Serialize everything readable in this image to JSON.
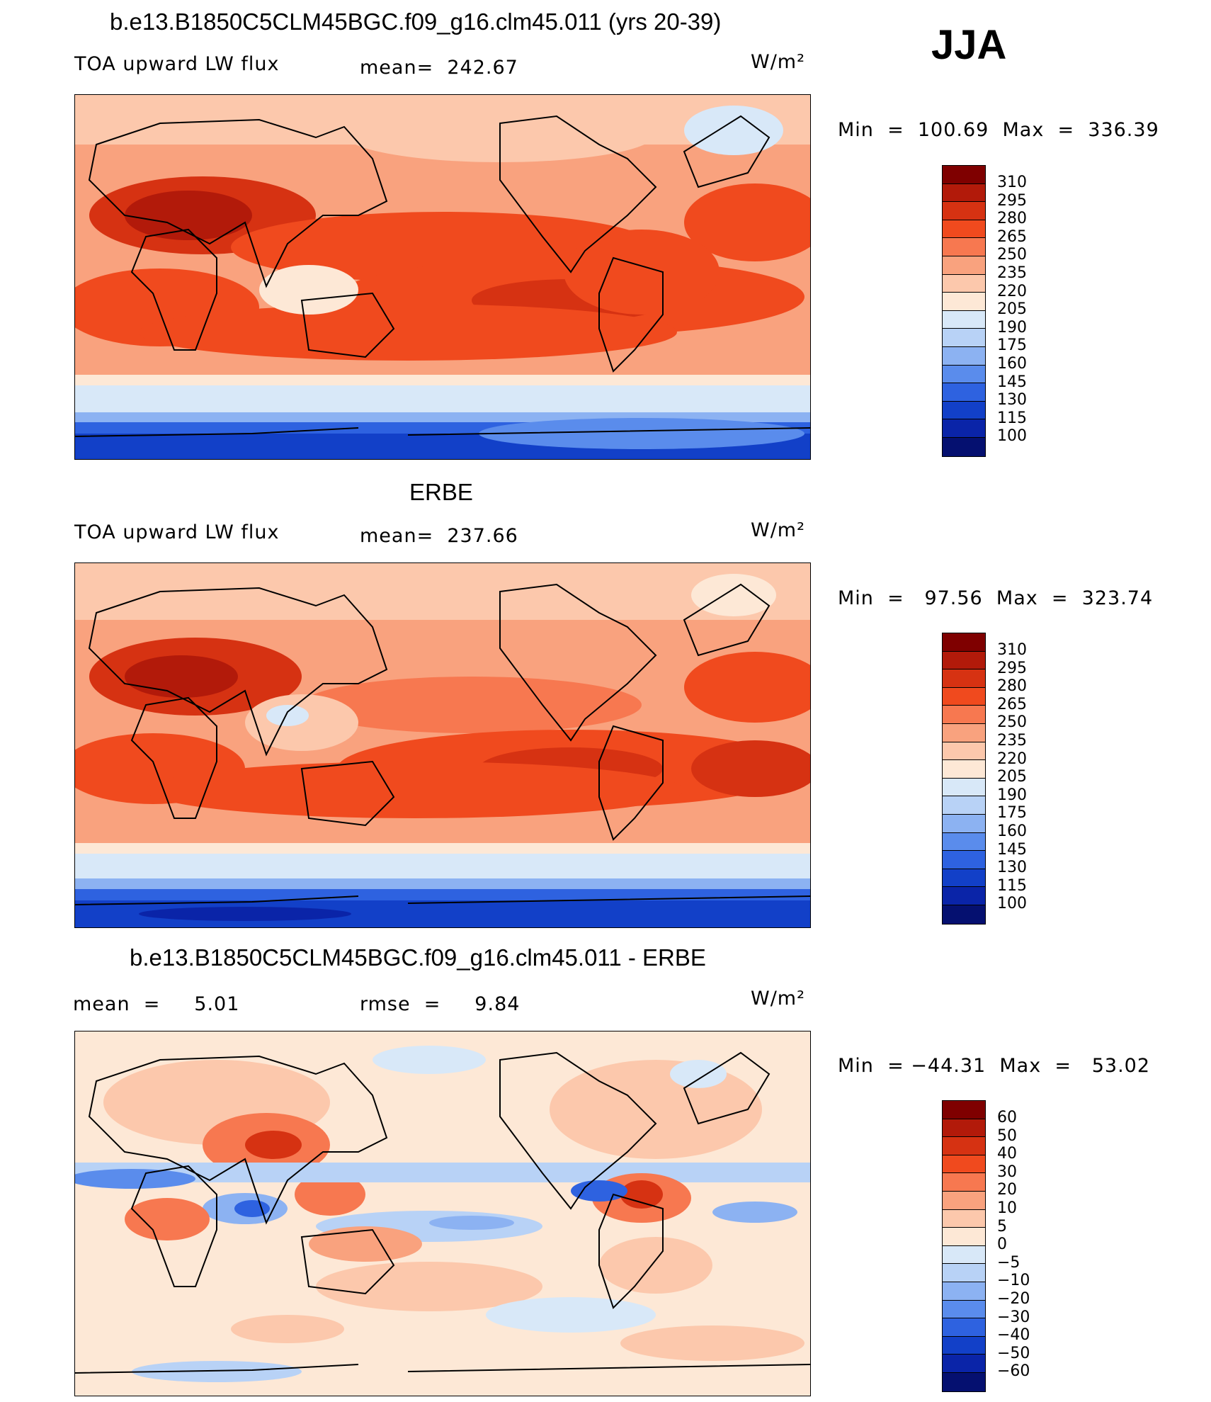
{
  "season": "JJA",
  "units": "W/m²",
  "panels": [
    {
      "id": "model",
      "title": "b.e13.B1850C5CLM45BGC.f09_g16.clm45.011 (yrs 20-39)",
      "left_text": "TOA upward LW flux",
      "center_text": "mean=  242.67",
      "minmax": "Min  =  100.69  Max  =  336.39",
      "colorbar_labels": [
        "310",
        "295",
        "280",
        "265",
        "250",
        "235",
        "220",
        "205",
        "190",
        "175",
        "160",
        "145",
        "130",
        "115",
        "100"
      ],
      "colors": [
        "#7f0000",
        "#b21a0a",
        "#d63212",
        "#f04a1e",
        "#f77850",
        "#f9a27e",
        "#fcc8ac",
        "#fde8d6",
        "#d8e8f8",
        "#b8d2f6",
        "#8cb2f2",
        "#5a8cec",
        "#2e62e0",
        "#1240c8",
        "#0a24a8",
        "#051070"
      ]
    },
    {
      "id": "obs",
      "title": "ERBE",
      "left_text": "TOA upward LW flux",
      "center_text": "mean=  237.66",
      "minmax": "Min  =   97.56  Max  =  323.74",
      "colorbar_labels": [
        "310",
        "295",
        "280",
        "265",
        "250",
        "235",
        "220",
        "205",
        "190",
        "175",
        "160",
        "145",
        "130",
        "115",
        "100"
      ],
      "colors": [
        "#7f0000",
        "#b21a0a",
        "#d63212",
        "#f04a1e",
        "#f77850",
        "#f9a27e",
        "#fcc8ac",
        "#fde8d6",
        "#d8e8f8",
        "#b8d2f6",
        "#8cb2f2",
        "#5a8cec",
        "#2e62e0",
        "#1240c8",
        "#0a24a8",
        "#051070"
      ]
    },
    {
      "id": "diff",
      "title": "b.e13.B1850C5CLM45BGC.f09_g16.clm45.011 - ERBE",
      "left_text": "mean  =     5.01",
      "center_text": "rmse  =     9.84",
      "minmax": "Min  = −44.31  Max  =   53.02",
      "colorbar_labels": [
        "60",
        "50",
        "40",
        "30",
        "20",
        "10",
        "5",
        "0",
        "−5",
        "−10",
        "−20",
        "−30",
        "−40",
        "−50",
        "−60"
      ],
      "colors": [
        "#7f0000",
        "#b21a0a",
        "#d63212",
        "#f04a1e",
        "#f77850",
        "#f9a27e",
        "#fcc8ac",
        "#fde8d6",
        "#d8e8f8",
        "#b8d2f6",
        "#8cb2f2",
        "#5a8cec",
        "#2e62e0",
        "#1240c8",
        "#0a24a8",
        "#051070"
      ]
    }
  ]
}
